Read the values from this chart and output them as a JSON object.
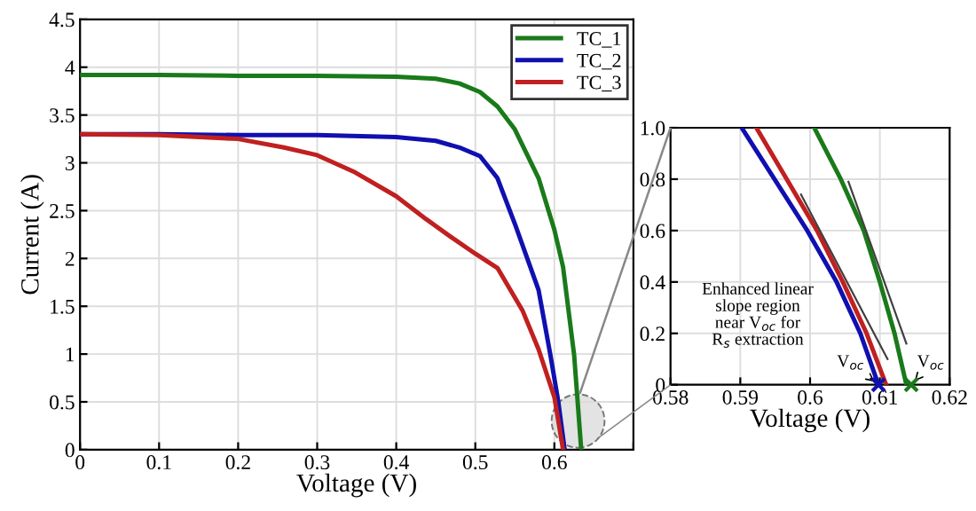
{
  "chart_data": [
    {
      "type": "line",
      "xlabel": "Voltage (V)",
      "ylabel": "Current (A)",
      "xlim": [
        0,
        0.7
      ],
      "ylim": [
        0,
        4.5
      ],
      "xticks": [
        0,
        0.1,
        0.2,
        0.3,
        0.4,
        0.5,
        0.6,
        {
          "value": 0.7,
          "label": null
        }
      ],
      "yticks": [
        0,
        0.5,
        1,
        1.5,
        2,
        2.5,
        3,
        3.5,
        4,
        4.5
      ],
      "grid": true,
      "legend": "top right",
      "line_style": "solid",
      "marker": "none",
      "series": [
        {
          "name": "TC_1",
          "color": "#1a7a1a",
          "x": [
            0,
            0.1,
            0.2,
            0.3,
            0.4,
            0.45,
            0.48,
            0.506,
            0.528,
            0.55,
            0.58,
            0.6,
            0.611,
            0.625,
            0.634
          ],
          "values": [
            3.92,
            3.92,
            3.91,
            3.91,
            3.9,
            3.88,
            3.83,
            3.74,
            3.59,
            3.35,
            2.84,
            2.3,
            1.91,
            0.99,
            0
          ]
        },
        {
          "name": "TC_2",
          "color": "#1010b0",
          "x": [
            0,
            0.1,
            0.2,
            0.3,
            0.4,
            0.45,
            0.48,
            0.506,
            0.528,
            0.551,
            0.58,
            0.595,
            0.605,
            0.613
          ],
          "values": [
            3.3,
            3.3,
            3.29,
            3.29,
            3.27,
            3.23,
            3.16,
            3.07,
            2.84,
            2.34,
            1.67,
            0.99,
            0.5,
            0
          ]
        },
        {
          "name": "TC_3",
          "color": "#c02020",
          "x": [
            0,
            0.1,
            0.2,
            0.258,
            0.3,
            0.348,
            0.4,
            0.438,
            0.47,
            0.5,
            0.528,
            0.56,
            0.58,
            0.6,
            0.611
          ],
          "values": [
            3.3,
            3.29,
            3.25,
            3.16,
            3.08,
            2.9,
            2.65,
            2.41,
            2.22,
            2.05,
            1.9,
            1.45,
            1.05,
            0.55,
            0
          ]
        }
      ]
    },
    {
      "type": "line",
      "xlabel": "Voltage (V)",
      "xlim": [
        0.58,
        0.62
      ],
      "ylim": [
        0,
        1
      ],
      "xticks": [
        0.58,
        0.59,
        0.6,
        0.61,
        0.62
      ],
      "yticks": [
        0,
        0.2,
        0.4,
        0.6,
        0.8,
        {
          "value": 1,
          "label": "1.0"
        }
      ],
      "grid": true,
      "line_style": "solid",
      "series": [
        {
          "color": "#1010b0",
          "x": [
            0.5902,
            0.5996,
            0.6038,
            0.6072,
            0.6098
          ],
          "values": [
            1,
            0.6,
            0.4,
            0.2,
            0
          ]
        },
        {
          "color": "#c02020",
          "x": [
            0.5923,
            0.601,
            0.6047,
            0.6081,
            0.6109
          ],
          "values": [
            1,
            0.6,
            0.4,
            0.2,
            0
          ]
        },
        {
          "color": "#1a7a1a",
          "x": [
            0.6006,
            0.6044,
            0.6077,
            0.61,
            0.6121,
            0.6138
          ],
          "values": [
            1,
            0.8,
            0.6,
            0.4,
            0.2,
            0
          ]
        },
        {
          "color": "#404040",
          "x": [
            0.5987,
            0.6111
          ],
          "values": [
            0.74,
            0.1
          ]
        },
        {
          "color": "#404040",
          "x": [
            0.6055,
            0.6138
          ],
          "values": [
            0.79,
            0.16
          ]
        },
        {
          "type": "scatter",
          "marker": "cross",
          "x": [
            0.6098,
            0.6145
          ],
          "values": [
            0,
            0
          ],
          "colors": [
            "#1010b0",
            "#1a7a1a"
          ]
        }
      ],
      "annotations": [
        "Enhanced linear\nslope region\nnear V$_{oc}$ for\nR$_{s}$ extraction",
        {
          "text": "V$_{oc}$",
          "x": 0.6098,
          "y": 0
        },
        {
          "text": "V$_{oc}$",
          "x": 0.6145,
          "y": 0
        }
      ]
    }
  ]
}
